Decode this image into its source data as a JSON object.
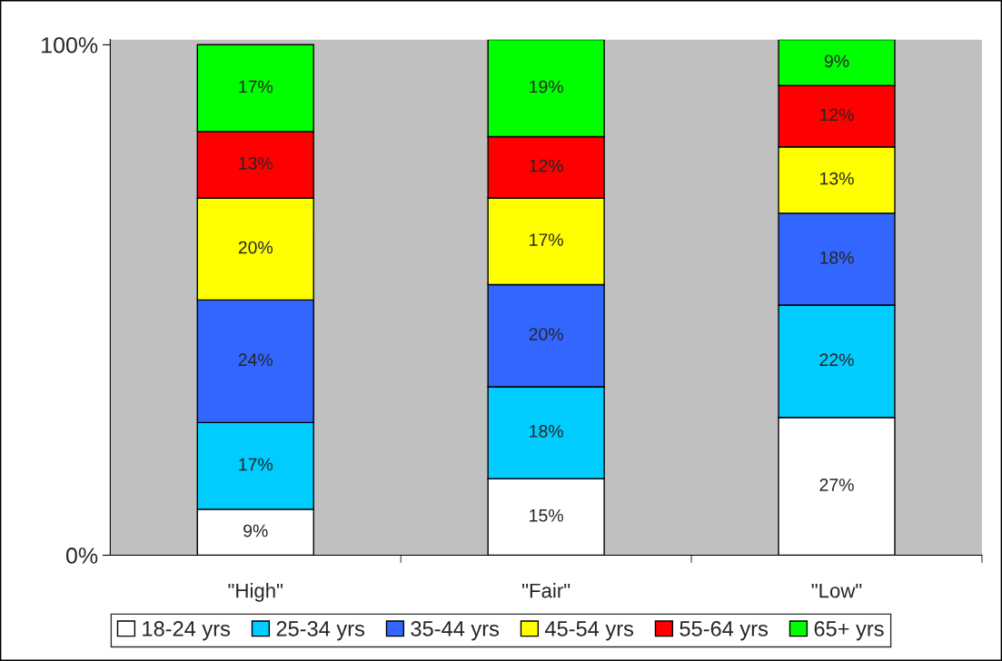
{
  "chart_data": {
    "type": "bar",
    "stacked": true,
    "legend": "bottom",
    "grid": false,
    "categories": [
      "\"High\"",
      "\"Fair\"",
      "\"Low\""
    ],
    "series": [
      {
        "name": "18-24 yrs",
        "color": "#ffffff",
        "values": [
          9,
          15,
          27
        ],
        "value_labels": [
          "9%",
          "15%",
          "27%"
        ]
      },
      {
        "name": "25-34 yrs",
        "color": "#00ccff",
        "values": [
          17,
          18,
          22
        ],
        "value_labels": [
          "17%",
          "18%",
          "22%"
        ]
      },
      {
        "name": "35-44 yrs",
        "color": "#3366ff",
        "values": [
          24,
          20,
          18
        ],
        "value_labels": [
          "24%",
          "20%",
          "18%"
        ]
      },
      {
        "name": "45-54 yrs",
        "color": "#ffff00",
        "values": [
          20,
          17,
          13
        ],
        "value_labels": [
          "20%",
          "17%",
          "13%"
        ]
      },
      {
        "name": "55-64 yrs",
        "color": "#ff0000",
        "values": [
          13,
          12,
          12
        ],
        "value_labels": [
          "13%",
          "12%",
          "12%"
        ]
      },
      {
        "name": "65+ yrs",
        "color": "#00ff00",
        "values": [
          17,
          19,
          9
        ],
        "value_labels": [
          "17%",
          "19%",
          "9%"
        ]
      }
    ],
    "ylim": [
      0,
      101
    ],
    "yticks": [
      {
        "value": 0,
        "label": "0%"
      },
      {
        "value": 100,
        "label": "100%"
      }
    ]
  }
}
